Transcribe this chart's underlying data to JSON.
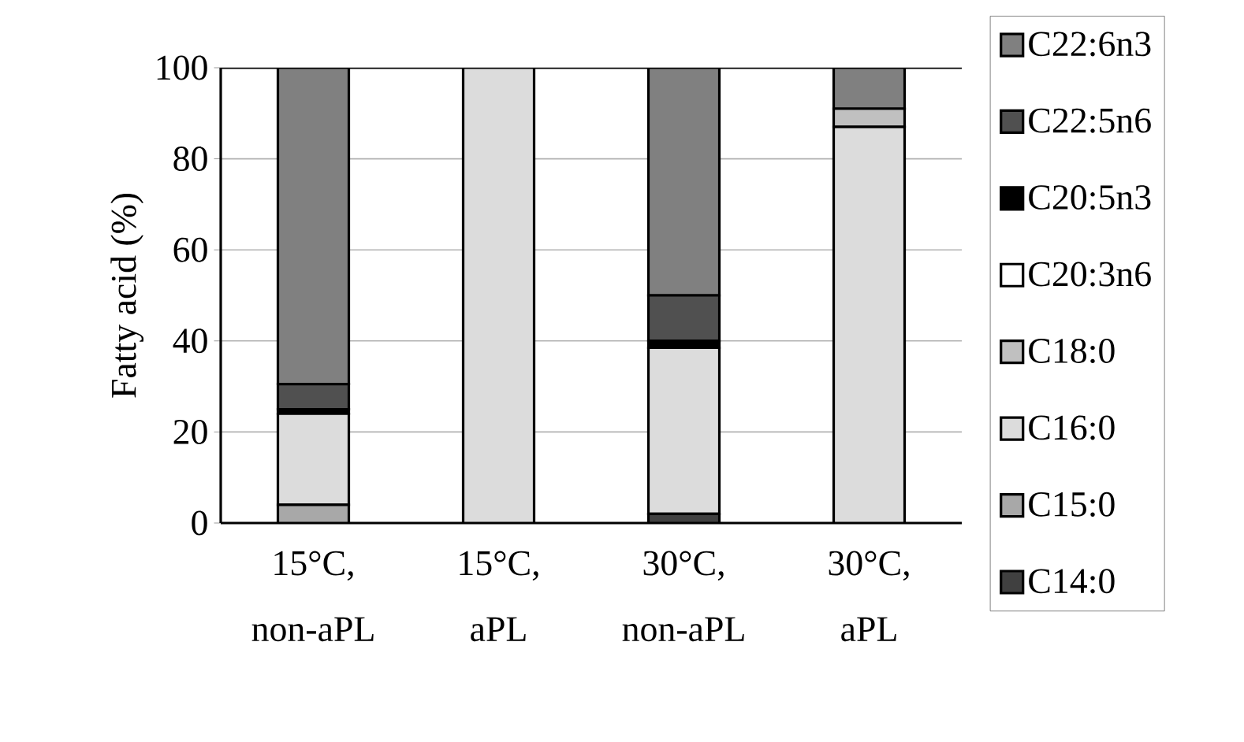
{
  "chart_data": {
    "type": "bar",
    "stacked": true,
    "ylabel": "Fatty acid (%)",
    "categories": [
      "15°C, non-aPL",
      "15°C, aPL",
      "30°C, non-aPL",
      "30°C, aPL"
    ],
    "ylim": [
      0,
      100
    ],
    "yticks": [
      0,
      20,
      40,
      60,
      80,
      100
    ],
    "grid": "y",
    "legend": "right",
    "series": [
      {
        "name": "C14:0",
        "color": "#404040",
        "values": [
          0,
          0,
          2,
          0
        ]
      },
      {
        "name": "C15:0",
        "color": "#a8a8a8",
        "values": [
          4,
          0,
          0,
          0
        ]
      },
      {
        "name": "C16:0",
        "color": "#dcdcdc",
        "values": [
          20,
          100,
          36.5,
          87
        ]
      },
      {
        "name": "C18:0",
        "color": "#c0c0c0",
        "values": [
          0,
          0,
          0,
          4
        ]
      },
      {
        "name": "C20:3n6",
        "color": "#ffffff",
        "values": [
          0,
          0,
          0,
          0
        ]
      },
      {
        "name": "C20:5n3",
        "color": "#000000",
        "values": [
          1,
          0,
          1.5,
          0
        ]
      },
      {
        "name": "C22:5n6",
        "color": "#505050",
        "values": [
          5.5,
          0,
          10,
          0
        ]
      },
      {
        "name": "C22:6n3",
        "color": "#808080",
        "values": [
          69.5,
          0,
          50,
          9
        ]
      }
    ]
  }
}
